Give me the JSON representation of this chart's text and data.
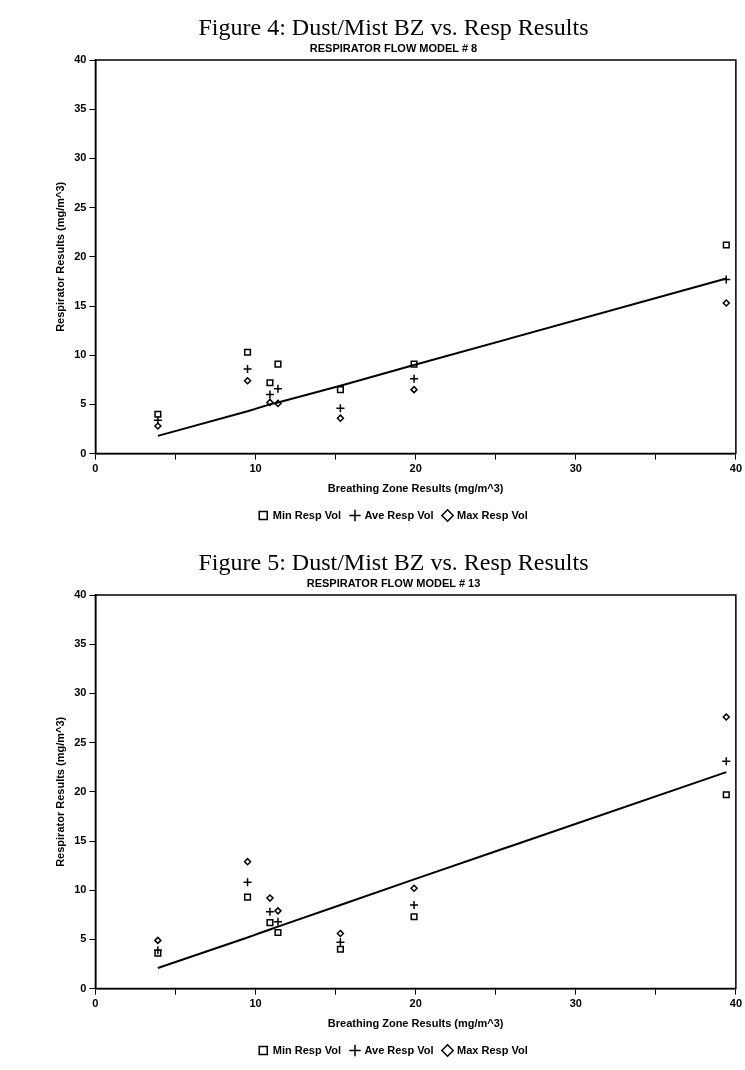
{
  "chart_data": [
    {
      "type": "scatter",
      "title": "Figure 4: Dust/Mist BZ vs. Resp Results",
      "subtitle": "RESPIRATOR FLOW MODEL # 8",
      "xlabel": "Breathing Zone Results (mg/m^3)",
      "ylabel": "Respirator Results (mg/m^3)",
      "x": [
        3.9,
        9.5,
        10.9,
        11.4,
        15.3,
        19.9,
        39.4
      ],
      "series": [
        {
          "name": "Min Resp Vol",
          "color": "#000000",
          "marker": "square",
          "values": [
            4.0,
            10.3,
            7.2,
            9.1,
            6.5,
            9.1,
            21.2
          ]
        },
        {
          "name": "Ave Resp Vol",
          "color": "#000000",
          "marker": "cross",
          "values": [
            3.4,
            8.6,
            6.0,
            6.6,
            4.6,
            7.6,
            17.7
          ]
        },
        {
          "name": "Max Resp Vol",
          "color": "#000000",
          "marker": "diamond",
          "values": [
            2.8,
            7.4,
            5.2,
            5.1,
            3.6,
            6.5,
            15.3
          ]
        },
        {
          "type": "line",
          "color": "#000000",
          "line_style": "solid",
          "marker": "none",
          "values": [
            1.8,
            4.3,
            5.0,
            5.2,
            6.9,
            9.0,
            17.8
          ]
        }
      ],
      "xlim": [
        0,
        40
      ],
      "xticks": [
        0,
        {
          "value": 5,
          "label": null
        },
        10,
        {
          "value": 15,
          "label": null
        },
        20,
        {
          "value": 25,
          "label": null
        },
        30,
        {
          "value": 35,
          "label": null
        },
        40
      ],
      "ylim": [
        0,
        40
      ],
      "yticks": [
        0,
        5,
        10,
        15,
        20,
        25,
        30,
        35,
        40
      ],
      "grid": false,
      "legend": "bottom"
    },
    {
      "type": "scatter",
      "title": "Figure 5: Dust/Mist BZ vs. Resp Results",
      "subtitle": "RESPIRATOR FLOW MODEL # 13",
      "xlabel": "Breathing Zone Results (mg/m^3)",
      "ylabel": "Respirator Results (mg/m^3)",
      "x": [
        3.9,
        9.5,
        10.9,
        11.4,
        15.3,
        19.9,
        39.4
      ],
      "series": [
        {
          "name": "Min Resp Vol",
          "color": "#000000",
          "marker": "square",
          "values": [
            3.6,
            9.3,
            6.7,
            5.7,
            4.0,
            7.3,
            19.7
          ]
        },
        {
          "name": "Ave Resp Vol",
          "color": "#000000",
          "marker": "cross",
          "values": [
            3.9,
            10.8,
            7.8,
            6.8,
            4.7,
            8.5,
            23.1
          ]
        },
        {
          "name": "Max Resp Vol",
          "color": "#000000",
          "marker": "diamond",
          "values": [
            4.9,
            12.9,
            9.2,
            7.9,
            5.6,
            10.2,
            27.6
          ]
        },
        {
          "type": "line",
          "color": "#000000",
          "line_style": "solid",
          "marker": "none",
          "values": [
            2.1,
            5.2,
            6.0,
            6.3,
            8.5,
            11.1,
            22.0
          ]
        }
      ],
      "xlim": [
        0,
        40
      ],
      "xticks": [
        0,
        {
          "value": 5,
          "label": null
        },
        10,
        {
          "value": 15,
          "label": null
        },
        20,
        {
          "value": 25,
          "label": null
        },
        30,
        {
          "value": 35,
          "label": null
        },
        40
      ],
      "ylim": [
        0,
        40
      ],
      "yticks": [
        0,
        5,
        10,
        15,
        20,
        25,
        30,
        35,
        40
      ],
      "grid": false,
      "legend": "bottom"
    }
  ]
}
